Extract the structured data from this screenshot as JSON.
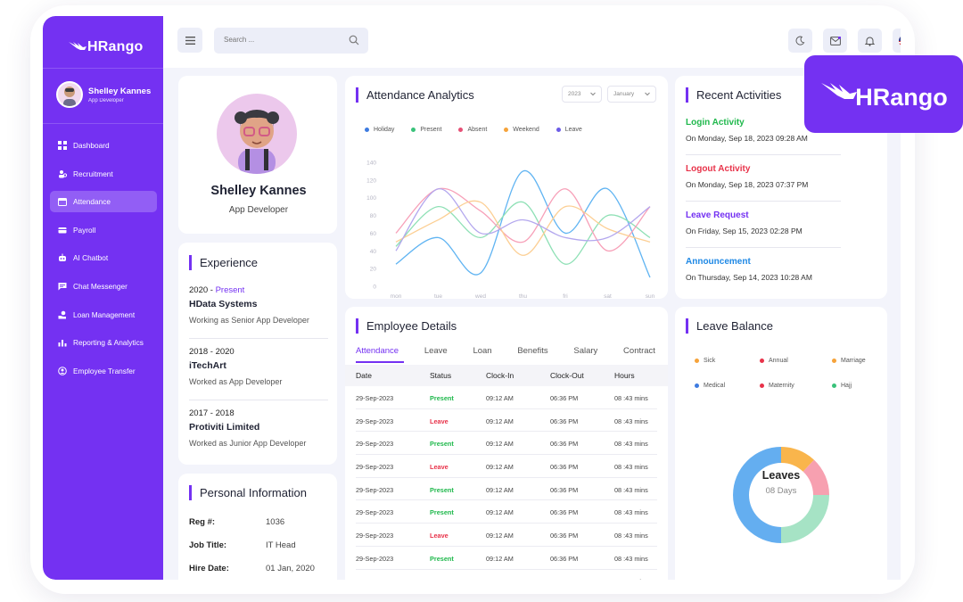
{
  "app": {
    "brand": "HRango"
  },
  "sidebar": {
    "user": {
      "name": "Shelley Kannes",
      "role": "App Developer"
    },
    "items": [
      {
        "label": "Dashboard",
        "icon": "grid-icon",
        "active": false
      },
      {
        "label": "Recruitment",
        "icon": "users-icon",
        "active": false
      },
      {
        "label": "Attendance",
        "icon": "calendar-icon",
        "active": true
      },
      {
        "label": "Payroll",
        "icon": "wallet-icon",
        "active": false
      },
      {
        "label": "AI Chatbot",
        "icon": "robot-icon",
        "active": false
      },
      {
        "label": "Chat Messenger",
        "icon": "chat-icon",
        "active": false
      },
      {
        "label": "Loan Management",
        "icon": "loan-icon",
        "active": false
      },
      {
        "label": "Reporting & Analytics",
        "icon": "bar-chart-icon",
        "active": false
      },
      {
        "label": "Employee Transfer",
        "icon": "transfer-icon",
        "active": false
      }
    ]
  },
  "topbar": {
    "search_placeholder": "Search ...",
    "icons": [
      "moon-icon",
      "mail-icon",
      "bell-icon",
      "us-flag-icon"
    ]
  },
  "profile_card": {
    "name": "Shelley Kannes",
    "role": "App Developer"
  },
  "experience": {
    "title": "Experience",
    "items": [
      {
        "years": "2020 - ",
        "present": "Present",
        "company": "HData Systems",
        "role": "Working as Senior App Developer"
      },
      {
        "years": "2018 - 2020",
        "present": "",
        "company": "iTechArt",
        "role": "Worked as App Developer"
      },
      {
        "years": "2017 - 2018",
        "present": "",
        "company": "Protiviti Limited",
        "role": "Worked as Junior App Developer"
      }
    ]
  },
  "personal_info": {
    "title": "Personal Information",
    "rows": [
      {
        "label": "Reg #:",
        "value": "1036"
      },
      {
        "label": "Job Title:",
        "value": "IT Head"
      },
      {
        "label": "Hire Date:",
        "value": "01 Jan, 2020"
      }
    ]
  },
  "analytics": {
    "title": "Attendance Analytics",
    "year": "2023",
    "month": "January",
    "legend": [
      {
        "name": "Holiday",
        "color": "#3d7be0"
      },
      {
        "name": "Present",
        "color": "#39c27a"
      },
      {
        "name": "Absent",
        "color": "#e65076"
      },
      {
        "name": "Weekend",
        "color": "#f6a33a"
      },
      {
        "name": "Leave",
        "color": "#6c5ce7"
      }
    ],
    "y_ticks": [
      "140",
      "120",
      "100",
      "80",
      "60",
      "40",
      "20",
      "0"
    ],
    "x_ticks": [
      "mon",
      "tue",
      "wed",
      "thu",
      "fri",
      "sat",
      "sun"
    ]
  },
  "chart_data": {
    "type": "line",
    "categories": [
      "mon",
      "tue",
      "wed",
      "thu",
      "fri",
      "sat",
      "sun"
    ],
    "ylim": [
      0,
      140
    ],
    "series": [
      {
        "name": "Holiday",
        "color": "#60b4f2",
        "values": [
          25,
          55,
          15,
          130,
          60,
          110,
          10
        ]
      },
      {
        "name": "Present",
        "color": "#8ee0b5",
        "values": [
          45,
          90,
          55,
          95,
          25,
          80,
          55
        ]
      },
      {
        "name": "Absent",
        "color": "#f7a0b8",
        "values": [
          60,
          110,
          85,
          50,
          110,
          40,
          90
        ]
      },
      {
        "name": "Weekend",
        "color": "#fccf94",
        "values": [
          50,
          75,
          95,
          35,
          90,
          65,
          50
        ]
      },
      {
        "name": "Leave",
        "color": "#b3a7ee",
        "values": [
          40,
          110,
          60,
          75,
          55,
          55,
          90
        ]
      }
    ]
  },
  "employee_details": {
    "title": "Employee Details",
    "tabs": [
      "Attendance",
      "Leave",
      "Loan",
      "Benefits",
      "Salary",
      "Contract"
    ],
    "columns": [
      "Date",
      "Status",
      "Clock-In",
      "Clock-Out",
      "Hours"
    ],
    "rows": [
      {
        "date": "29-Sep-2023",
        "status": "Present",
        "in": "09:12 AM",
        "out": "06:36 PM",
        "hours": "08 :43 mins"
      },
      {
        "date": "29-Sep-2023",
        "status": "Leave",
        "in": "09:12 AM",
        "out": "06:36 PM",
        "hours": "08 :43 mins"
      },
      {
        "date": "29-Sep-2023",
        "status": "Present",
        "in": "09:12 AM",
        "out": "06:36 PM",
        "hours": "08 :43 mins"
      },
      {
        "date": "29-Sep-2023",
        "status": "Leave",
        "in": "09:12 AM",
        "out": "06:36 PM",
        "hours": "08 :43 mins"
      },
      {
        "date": "29-Sep-2023",
        "status": "Present",
        "in": "09:12 AM",
        "out": "06:36 PM",
        "hours": "08 :43 mins"
      },
      {
        "date": "29-Sep-2023",
        "status": "Present",
        "in": "09:12 AM",
        "out": "06:36 PM",
        "hours": "08 :43 mins"
      },
      {
        "date": "29-Sep-2023",
        "status": "Leave",
        "in": "09:12 AM",
        "out": "06:36 PM",
        "hours": "08 :43 mins"
      },
      {
        "date": "29-Sep-2023",
        "status": "Present",
        "in": "09:12 AM",
        "out": "06:36 PM",
        "hours": "08 :43 mins"
      },
      {
        "date": "29-Sep-2023",
        "status": "Leave",
        "in": "09:12 AM",
        "out": "06:36 PM",
        "hours": "08 :43 mins"
      }
    ]
  },
  "activities": {
    "title": "Recent Activities",
    "items": [
      {
        "title": "Login Activity",
        "time": "On Monday, Sep 18, 2023  09:28 AM",
        "color": "#1fb84c"
      },
      {
        "title": "Logout Activity",
        "time": "On Monday, Sep 18, 2023  07:37 PM",
        "color": "#e8334a"
      },
      {
        "title": "Leave Request",
        "time": "On Friday, Sep 15, 2023  02:28 PM",
        "color": "#7431f2"
      },
      {
        "title": "Announcement",
        "time": "On Thursday, Sep 14, 2023  10:28 AM",
        "color": "#1e88e5"
      }
    ]
  },
  "leave_balance": {
    "title": "Leave Balance",
    "legend": [
      {
        "name": "Sick",
        "color": "#f6a33a"
      },
      {
        "name": "Annual",
        "color": "#e8334a"
      },
      {
        "name": "Marriage",
        "color": "#f6a33a"
      },
      {
        "name": "Medical",
        "color": "#3d7be0"
      },
      {
        "name": "Maternity",
        "color": "#e8334a"
      },
      {
        "name": "Hajj",
        "color": "#39c27a"
      }
    ],
    "center_label": "Leaves",
    "center_value": "08 Days",
    "donut": [
      {
        "name": "orange",
        "color": "#f9b54c",
        "fraction": 0.12
      },
      {
        "name": "pink",
        "color": "#f7a0b0",
        "fraction": 0.13
      },
      {
        "name": "green",
        "color": "#a6e3c5",
        "fraction": 0.25
      },
      {
        "name": "blue",
        "color": "#64aef0",
        "fraction": 0.5
      }
    ]
  },
  "badge": {
    "text": "HRango"
  }
}
